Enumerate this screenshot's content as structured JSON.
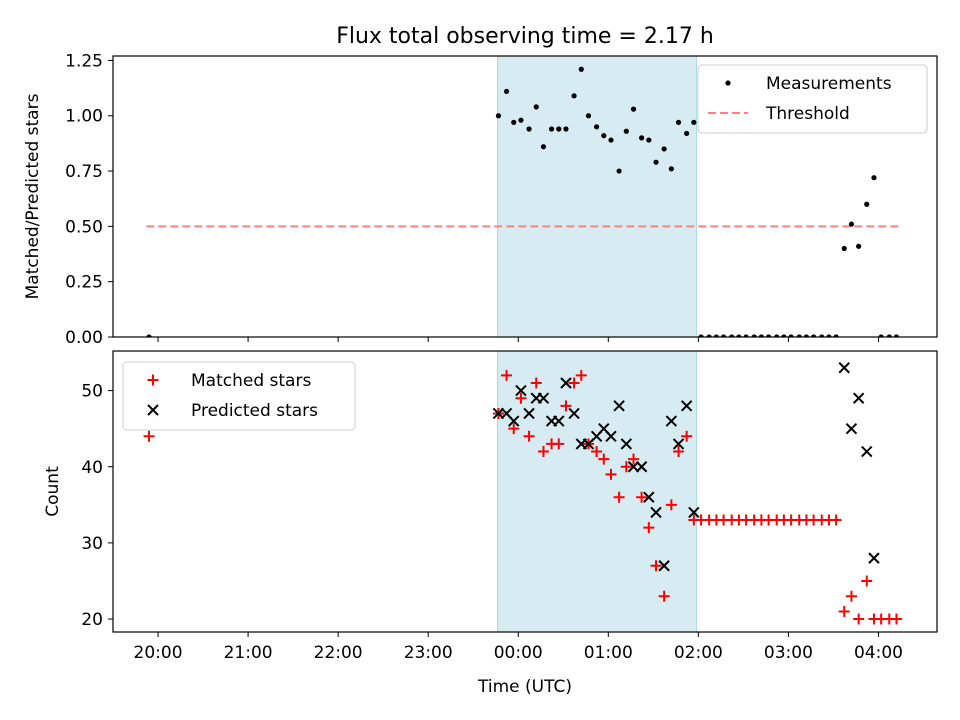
{
  "title": "Flux total observing time = 2.17 h",
  "colors": {
    "measurement": "#000000",
    "threshold": "#ff7f7f",
    "matched": "#ff0000",
    "predicted": "#000000",
    "span": "#add8e6"
  },
  "chart_data": [
    {
      "type": "scatter",
      "ylabel": "Matched/Predicted stars",
      "xlim_hours": [
        19.5,
        28.65
      ],
      "ylim": [
        0,
        1.27
      ],
      "yticks": [
        "0.00",
        "0.25",
        "0.50",
        "0.75",
        "1.00",
        "1.25"
      ],
      "shaded_span_hours": [
        23.77,
        25.98
      ],
      "legend": {
        "position": "top-right",
        "entries": [
          "Measurements",
          "Threshold"
        ]
      },
      "threshold": {
        "name": "Threshold",
        "y": 0.5,
        "x_hours": [
          19.87,
          28.23
        ]
      },
      "series": [
        {
          "name": "Measurements",
          "marker": "dot",
          "points": [
            [
              19.9,
              0.0
            ],
            [
              23.78,
              1.0
            ],
            [
              23.87,
              1.11
            ],
            [
              23.95,
              0.97
            ],
            [
              24.03,
              0.98
            ],
            [
              24.12,
              0.94
            ],
            [
              24.2,
              1.04
            ],
            [
              24.28,
              0.86
            ],
            [
              24.37,
              0.94
            ],
            [
              24.45,
              0.94
            ],
            [
              24.53,
              0.94
            ],
            [
              24.62,
              1.09
            ],
            [
              24.7,
              1.21
            ],
            [
              24.78,
              1.0
            ],
            [
              24.87,
              0.95
            ],
            [
              24.95,
              0.91
            ],
            [
              25.03,
              0.89
            ],
            [
              25.12,
              0.75
            ],
            [
              25.2,
              0.93
            ],
            [
              25.28,
              1.03
            ],
            [
              25.37,
              0.9
            ],
            [
              25.45,
              0.89
            ],
            [
              25.53,
              0.79
            ],
            [
              25.62,
              0.85
            ],
            [
              25.7,
              0.76
            ],
            [
              25.78,
              0.97
            ],
            [
              25.87,
              0.92
            ],
            [
              25.95,
              0.97
            ],
            [
              26.03,
              0
            ],
            [
              26.12,
              0
            ],
            [
              26.2,
              0
            ],
            [
              26.28,
              0
            ],
            [
              26.37,
              0
            ],
            [
              26.45,
              0
            ],
            [
              26.53,
              0
            ],
            [
              26.62,
              0
            ],
            [
              26.7,
              0
            ],
            [
              26.78,
              0
            ],
            [
              26.87,
              0
            ],
            [
              26.95,
              0
            ],
            [
              27.03,
              0
            ],
            [
              27.12,
              0
            ],
            [
              27.2,
              0
            ],
            [
              27.28,
              0
            ],
            [
              27.37,
              0
            ],
            [
              27.45,
              0
            ],
            [
              27.53,
              0
            ],
            [
              27.62,
              0.4
            ],
            [
              27.7,
              0.51
            ],
            [
              27.78,
              0.41
            ],
            [
              27.87,
              0.6
            ],
            [
              27.95,
              0.72
            ],
            [
              28.03,
              0
            ],
            [
              28.12,
              0
            ],
            [
              28.2,
              0
            ]
          ]
        }
      ]
    },
    {
      "type": "scatter",
      "ylabel": "Count",
      "xlabel": "Time (UTC)",
      "xlim_hours": [
        19.5,
        28.65
      ],
      "ylim": [
        18.3,
        55.2
      ],
      "yticks": [
        "20",
        "30",
        "40",
        "50"
      ],
      "xticks": [
        "20:00",
        "21:00",
        "22:00",
        "23:00",
        "00:00",
        "01:00",
        "02:00",
        "03:00",
        "04:00"
      ],
      "shaded_span_hours": [
        23.77,
        25.98
      ],
      "legend": {
        "position": "top-left",
        "entries": [
          "Matched stars",
          "Predicted stars"
        ]
      },
      "series": [
        {
          "name": "Matched stars",
          "marker": "plus",
          "points": [
            [
              19.9,
              44
            ],
            [
              23.78,
              47
            ],
            [
              23.87,
              52
            ],
            [
              23.95,
              45
            ],
            [
              24.03,
              49
            ],
            [
              24.12,
              44
            ],
            [
              24.2,
              51
            ],
            [
              24.28,
              42
            ],
            [
              24.37,
              43
            ],
            [
              24.45,
              43
            ],
            [
              24.53,
              48
            ],
            [
              24.62,
              51
            ],
            [
              24.7,
              52
            ],
            [
              24.78,
              43
            ],
            [
              24.87,
              42
            ],
            [
              24.95,
              41
            ],
            [
              25.03,
              39
            ],
            [
              25.12,
              36
            ],
            [
              25.2,
              40
            ],
            [
              25.28,
              41
            ],
            [
              25.37,
              36
            ],
            [
              25.45,
              32
            ],
            [
              25.53,
              27
            ],
            [
              25.62,
              23
            ],
            [
              25.7,
              35
            ],
            [
              25.78,
              42
            ],
            [
              25.87,
              44
            ],
            [
              25.95,
              33
            ],
            [
              26.03,
              33
            ],
            [
              26.12,
              33
            ],
            [
              26.2,
              33
            ],
            [
              26.28,
              33
            ],
            [
              26.37,
              33
            ],
            [
              26.45,
              33
            ],
            [
              26.53,
              33
            ],
            [
              26.62,
              33
            ],
            [
              26.7,
              33
            ],
            [
              26.78,
              33
            ],
            [
              26.87,
              33
            ],
            [
              26.95,
              33
            ],
            [
              27.03,
              33
            ],
            [
              27.12,
              33
            ],
            [
              27.2,
              33
            ],
            [
              27.28,
              33
            ],
            [
              27.37,
              33
            ],
            [
              27.45,
              33
            ],
            [
              27.53,
              33
            ],
            [
              27.62,
              21
            ],
            [
              27.7,
              23
            ],
            [
              27.78,
              20
            ],
            [
              27.87,
              25
            ],
            [
              27.95,
              20
            ],
            [
              28.03,
              20
            ],
            [
              28.12,
              20
            ],
            [
              28.2,
              20
            ]
          ]
        },
        {
          "name": "Predicted stars",
          "marker": "x",
          "points": [
            [
              23.78,
              47
            ],
            [
              23.87,
              47
            ],
            [
              23.95,
              46
            ],
            [
              24.03,
              50
            ],
            [
              24.12,
              47
            ],
            [
              24.2,
              49
            ],
            [
              24.28,
              49
            ],
            [
              24.37,
              46
            ],
            [
              24.45,
              46
            ],
            [
              24.53,
              51
            ],
            [
              24.62,
              47
            ],
            [
              24.7,
              43
            ],
            [
              24.78,
              43
            ],
            [
              24.87,
              44
            ],
            [
              24.95,
              45
            ],
            [
              25.03,
              44
            ],
            [
              25.12,
              48
            ],
            [
              25.2,
              43
            ],
            [
              25.28,
              40
            ],
            [
              25.37,
              40
            ],
            [
              25.45,
              36
            ],
            [
              25.53,
              34
            ],
            [
              25.62,
              27
            ],
            [
              25.7,
              46
            ],
            [
              25.78,
              43
            ],
            [
              25.87,
              48
            ],
            [
              25.95,
              34
            ],
            [
              27.62,
              53
            ],
            [
              27.7,
              45
            ],
            [
              27.78,
              49
            ],
            [
              27.87,
              42
            ],
            [
              27.95,
              28
            ]
          ]
        }
      ]
    }
  ]
}
